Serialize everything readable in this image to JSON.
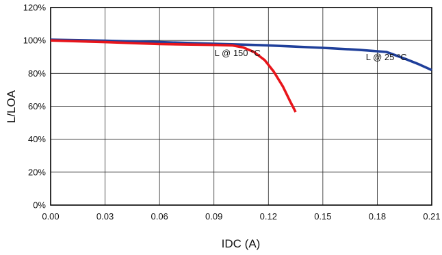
{
  "chart_data": {
    "type": "line",
    "title": "",
    "xlabel": "IDC (A)",
    "ylabel": "L/LOA",
    "xlim": [
      0,
      0.21
    ],
    "ylim": [
      0,
      120
    ],
    "x_ticks": [
      "0.00",
      "0.03",
      "0.06",
      "0.09",
      "0.12",
      "0.15",
      "0.18",
      "0.21"
    ],
    "y_ticks": [
      "0%",
      "20%",
      "40%",
      "60%",
      "80%",
      "100%",
      "120%"
    ],
    "grid": true,
    "legend": "none",
    "series": [
      {
        "label": "L @ 25 °C",
        "color": "#1f3f9a",
        "points": [
          [
            0.0,
            100.5
          ],
          [
            0.03,
            99.8
          ],
          [
            0.06,
            99.0
          ],
          [
            0.09,
            98.0
          ],
          [
            0.12,
            97.0
          ],
          [
            0.15,
            95.5
          ],
          [
            0.17,
            94.3
          ],
          [
            0.185,
            93.0
          ],
          [
            0.195,
            89.0
          ],
          [
            0.203,
            85.5
          ],
          [
            0.21,
            82.0
          ]
        ]
      },
      {
        "label": "L @ 150 °C",
        "color": "#e8151b",
        "points": [
          [
            0.0,
            100.0
          ],
          [
            0.03,
            99.0
          ],
          [
            0.06,
            97.8
          ],
          [
            0.09,
            97.3
          ],
          [
            0.1,
            97.0
          ],
          [
            0.106,
            95.8
          ],
          [
            0.112,
            93.0
          ],
          [
            0.118,
            88.0
          ],
          [
            0.123,
            81.0
          ],
          [
            0.128,
            72.0
          ],
          [
            0.132,
            63.0
          ],
          [
            0.135,
            56.5
          ]
        ]
      }
    ],
    "annotations": [
      {
        "text": "L @ 150 °C",
        "x": 0.103,
        "y": 90.5
      },
      {
        "text": "L @ 25 °C",
        "x": 0.185,
        "y": 88.0
      }
    ]
  }
}
